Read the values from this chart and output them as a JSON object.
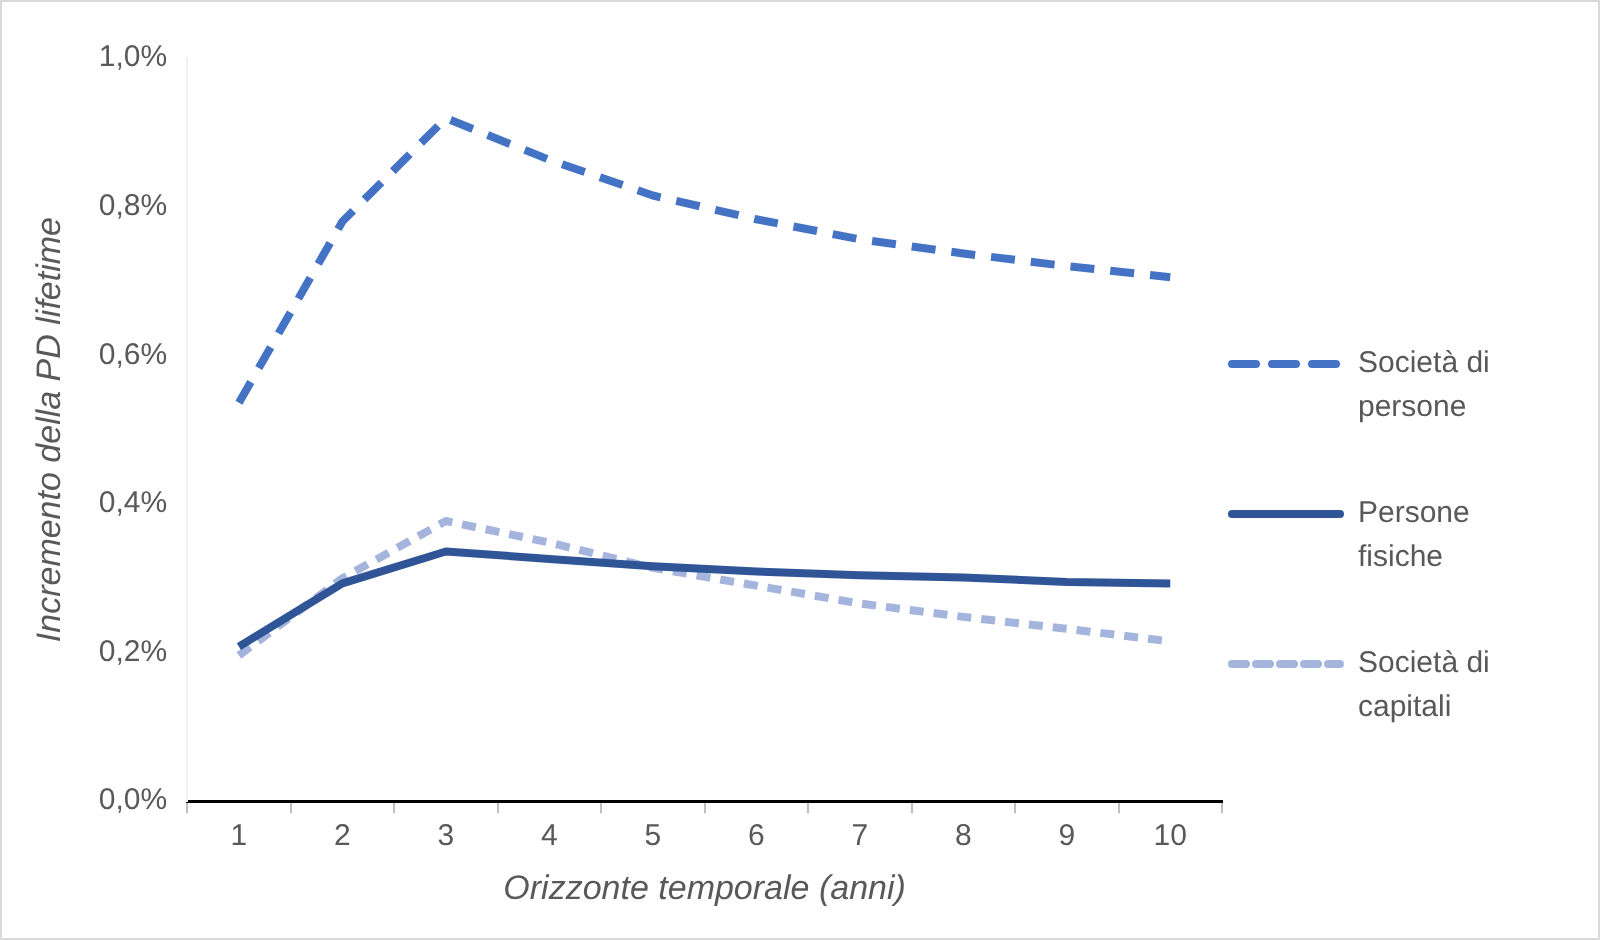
{
  "chart_data": {
    "type": "line",
    "xlabel": "Orizzonte temporale (anni)",
    "ylabel": "Incremento della PD lifetime",
    "categories": [
      "1",
      "2",
      "3",
      "4",
      "5",
      "6",
      "7",
      "8",
      "9",
      "10"
    ],
    "series": [
      {
        "name": "Società di persone",
        "color": "#4472c4",
        "line_style": "dashed",
        "values": [
          0.536,
          0.78,
          0.919,
          0.863,
          0.815,
          0.783,
          0.756,
          0.737,
          0.72,
          0.705
        ]
      },
      {
        "name": "Persone fisiche",
        "color": "#2f5597",
        "line_style": "solid",
        "values": [
          0.208,
          0.293,
          0.336,
          0.326,
          0.316,
          0.309,
          0.304,
          0.301,
          0.295,
          0.293
        ]
      },
      {
        "name": "Società di capitali",
        "color": "#a5b4dc",
        "line_style": "dashed",
        "values": [
          0.196,
          0.3,
          0.377,
          0.348,
          0.314,
          0.29,
          0.266,
          0.248,
          0.232,
          0.215
        ]
      }
    ],
    "ylim": [
      0,
      1
    ],
    "yticks": [
      {
        "value": 0,
        "label": "0,0%"
      },
      {
        "value": 0.2,
        "label": "0,2%"
      },
      {
        "value": 0.4,
        "label": "0,4%"
      },
      {
        "value": 0.6,
        "label": "0,6%"
      },
      {
        "value": 0.8,
        "label": "0,8%"
      },
      {
        "value": 1,
        "label": "1,0%"
      }
    ],
    "grid": false,
    "legend": "right",
    "marker": "none"
  }
}
